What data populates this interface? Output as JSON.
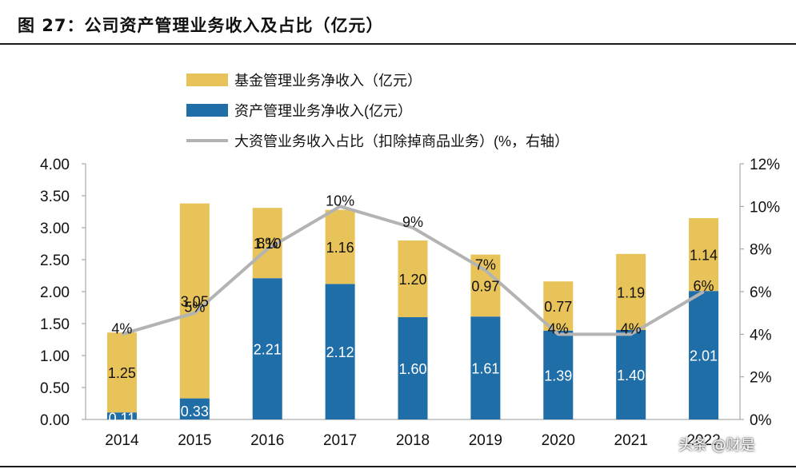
{
  "figure": {
    "title": "图 27：公司资产管理业务收入及占比（亿元）",
    "watermark": "头条 @财是"
  },
  "chart_data": {
    "type": "bar",
    "stacked": true,
    "categories": [
      "2014",
      "2015",
      "2016",
      "2017",
      "2018",
      "2019",
      "2020",
      "2021",
      "2022"
    ],
    "series": [
      {
        "name": "资产管理业务净收入(亿元）",
        "type": "bar",
        "axis": "left",
        "color": "#1f6ea8",
        "values": [
          0.11,
          0.33,
          2.21,
          2.12,
          1.6,
          1.61,
          1.39,
          1.4,
          2.01
        ]
      },
      {
        "name": "基金管理业务净收入（亿元）",
        "type": "bar",
        "axis": "left",
        "color": "#e8c35a",
        "values": [
          1.25,
          3.05,
          1.1,
          1.16,
          1.2,
          0.97,
          0.77,
          1.19,
          1.14
        ]
      },
      {
        "name": "大资管业务收入占比（扣除掉商品业务）(%，右轴）",
        "type": "line",
        "axis": "right",
        "color": "#b3b3b3",
        "values": [
          4,
          5,
          8,
          10,
          9,
          7,
          4,
          4,
          6
        ]
      }
    ],
    "bar_labels": [
      [
        "0.11",
        "0.33",
        "2.21",
        "2.12",
        "1.60",
        "1.61",
        "1.39",
        "1.40",
        "2.01"
      ],
      [
        "1.25",
        "3.05",
        "1.10",
        "1.16",
        "1.20",
        "0.97",
        "0.77",
        "1.19",
        "1.14"
      ]
    ],
    "line_labels": [
      "4%",
      "5%",
      "8%",
      "10%",
      "9%",
      "7%",
      "4%",
      "4%",
      "6%"
    ],
    "y_left": {
      "min": 0,
      "max": 4,
      "ticks": [
        "0.00",
        "0.50",
        "1.00",
        "1.50",
        "2.00",
        "2.50",
        "3.00",
        "3.50",
        "4.00"
      ]
    },
    "y_right": {
      "min": 0,
      "max": 12,
      "ticks": [
        "0%",
        "2%",
        "4%",
        "6%",
        "8%",
        "10%",
        "12%"
      ]
    },
    "legend_position": "top-left",
    "grid": false
  }
}
